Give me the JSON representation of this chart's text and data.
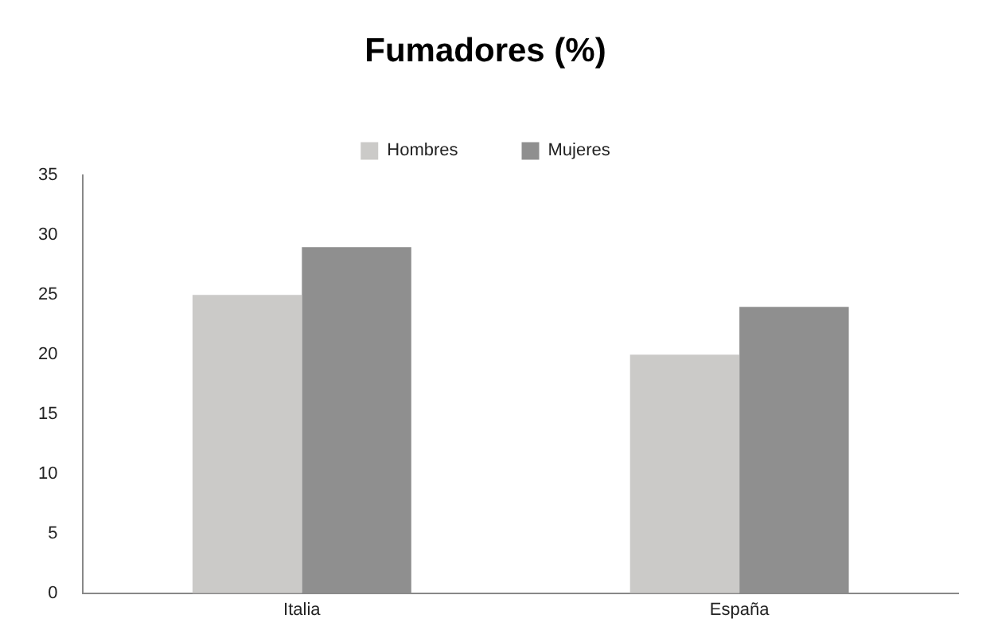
{
  "chart_data": {
    "type": "bar",
    "title": "Fumadores (%)",
    "categories": [
      "Italia",
      "España"
    ],
    "series": [
      {
        "name": "Hombres",
        "color": "#cbcac8",
        "values": [
          25,
          20
        ]
      },
      {
        "name": "Mujeres",
        "color": "#8f8f8f",
        "values": [
          29,
          24
        ]
      }
    ],
    "ylim": [
      0,
      35
    ],
    "yticks": [
      0,
      5,
      10,
      15,
      20,
      25,
      30,
      35
    ],
    "grid": false,
    "legend": "top"
  }
}
